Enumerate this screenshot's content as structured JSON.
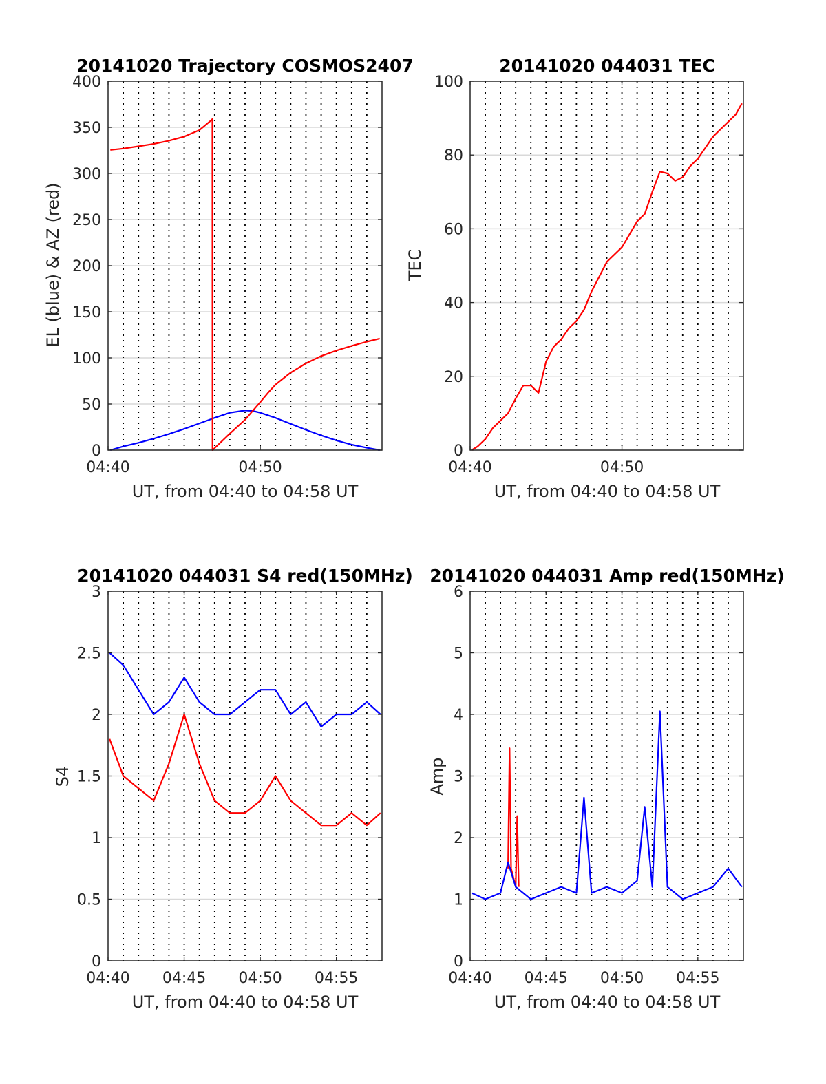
{
  "colors": {
    "el": "#0000ff",
    "az": "#ff0000",
    "tec": "#ff0000",
    "s4_red": "#ff0000",
    "s4_blue": "#0000ff",
    "amp_red": "#ff0000",
    "amp_blue": "#0000ff"
  },
  "chart_data": [
    {
      "id": "traj",
      "type": "line",
      "title": "20141020 Trajectory COSMOS2407",
      "xlabel": "UT, from 04:40 to 04:58 UT",
      "ylabel": "EL (blue) & AZ (red)",
      "xlim": [
        0,
        18
      ],
      "ylim": [
        0,
        400
      ],
      "xticks": [
        {
          "v": 0,
          "label": "04:40"
        },
        {
          "v": 10,
          "label": "04:50"
        }
      ],
      "yticks": [
        {
          "v": 0,
          "label": "0"
        },
        {
          "v": 50,
          "label": "50"
        },
        {
          "v": 100,
          "label": "100"
        },
        {
          "v": 150,
          "label": "150"
        },
        {
          "v": 200,
          "label": "200"
        },
        {
          "v": 250,
          "label": "250"
        },
        {
          "v": 300,
          "label": "300"
        },
        {
          "v": 350,
          "label": "350"
        },
        {
          "v": 400,
          "label": "400"
        }
      ],
      "grid": "on",
      "series": [
        {
          "color": "#0000ff",
          "x": [
            0.15,
            1,
            2,
            3,
            4,
            5,
            6,
            7,
            8,
            9,
            9.5,
            10,
            11,
            12,
            13,
            14,
            15,
            16,
            17,
            17.85
          ],
          "y": [
            0,
            4,
            8,
            12.5,
            17.5,
            23,
            29,
            35,
            40.5,
            43,
            42.5,
            40.5,
            35,
            28.5,
            22,
            16,
            10.5,
            6,
            2.5,
            0
          ]
        },
        {
          "color": "#ff0000",
          "x": [
            0.15,
            1,
            2,
            3,
            4,
            5,
            6,
            6.8,
            6.85,
            6.86,
            7.5,
            8,
            9,
            10,
            10.5,
            11,
            12,
            13,
            14,
            15,
            16,
            17,
            17.85
          ],
          "y": [
            325.5,
            327,
            329.5,
            332,
            335.5,
            340,
            347,
            358,
            359,
            0,
            10,
            18,
            33,
            52,
            62,
            71,
            84,
            94,
            102,
            108,
            113,
            117.5,
            121
          ]
        }
      ]
    },
    {
      "id": "tec",
      "type": "line",
      "title": "20141020 044031 TEC",
      "xlabel": "UT, from 04:40 to 04:58 UT",
      "ylabel": "TEC",
      "xlim": [
        0,
        18
      ],
      "ylim": [
        0,
        100
      ],
      "xticks": [
        {
          "v": 0,
          "label": "04:40"
        },
        {
          "v": 10,
          "label": "04:50"
        }
      ],
      "yticks": [
        {
          "v": 0,
          "label": "0"
        },
        {
          "v": 20,
          "label": "20"
        },
        {
          "v": 40,
          "label": "40"
        },
        {
          "v": 60,
          "label": "60"
        },
        {
          "v": 80,
          "label": "80"
        },
        {
          "v": 100,
          "label": "100"
        }
      ],
      "grid": "on",
      "series": [
        {
          "color": "#ff0000",
          "x": [
            0.1,
            0.5,
            1,
            1.5,
            2,
            2.5,
            3,
            3.5,
            4,
            4.5,
            5,
            5.5,
            6,
            6.5,
            7,
            7.5,
            8,
            8.5,
            9,
            9.5,
            10,
            10.5,
            11,
            11.5,
            12,
            12.5,
            13,
            13.5,
            14,
            14.5,
            15,
            15.5,
            16,
            16.5,
            17,
            17.5,
            17.9
          ],
          "y": [
            0,
            1,
            3,
            6,
            8,
            10,
            14,
            17.5,
            17.5,
            15.5,
            24,
            28,
            30,
            33,
            35,
            38,
            43,
            47,
            51,
            53,
            55,
            58.5,
            62,
            64,
            70,
            75.5,
            75,
            73,
            74,
            77,
            79,
            82,
            85,
            87,
            89,
            91,
            94
          ]
        }
      ]
    },
    {
      "id": "s4",
      "type": "line",
      "title": "20141020 044031 S4 red(150MHz)",
      "xlabel": "UT, from 04:40 to 04:58 UT",
      "ylabel": "S4",
      "xlim": [
        0,
        18
      ],
      "ylim": [
        0,
        3
      ],
      "xticks": [
        {
          "v": 0,
          "label": "04:40"
        },
        {
          "v": 5,
          "label": "04:45"
        },
        {
          "v": 10,
          "label": "04:50"
        },
        {
          "v": 15,
          "label": "04:55"
        }
      ],
      "yticks": [
        {
          "v": 0,
          "label": "0"
        },
        {
          "v": 0.5,
          "label": "0.5"
        },
        {
          "v": 1,
          "label": "1"
        },
        {
          "v": 1.5,
          "label": "1.5"
        },
        {
          "v": 2,
          "label": "2"
        },
        {
          "v": 2.5,
          "label": "2.5"
        },
        {
          "v": 3,
          "label": "3"
        }
      ],
      "grid": "on",
      "series": [
        {
          "color": "#ff0000",
          "x": [
            0.1,
            1,
            2,
            3,
            4,
            5,
            6,
            7,
            8,
            9,
            10,
            11,
            12,
            13,
            14,
            15,
            16,
            17,
            17.9
          ],
          "y": [
            1.8,
            1.5,
            1.4,
            1.3,
            1.6,
            2.0,
            1.6,
            1.3,
            1.2,
            1.2,
            1.3,
            1.5,
            1.3,
            1.2,
            1.1,
            1.1,
            1.2,
            1.1,
            1.2
          ]
        },
        {
          "color": "#0000ff",
          "x": [
            0.1,
            1,
            2,
            3,
            4,
            5,
            6,
            7,
            8,
            9,
            10,
            11,
            12,
            13,
            14,
            15,
            16,
            17,
            17.9
          ],
          "y": [
            2.5,
            2.4,
            2.2,
            2.0,
            2.1,
            2.3,
            2.1,
            2.0,
            2.0,
            2.1,
            2.2,
            2.2,
            2.0,
            2.1,
            1.9,
            2.0,
            2.0,
            2.1,
            2.0
          ]
        }
      ]
    },
    {
      "id": "amp",
      "type": "line",
      "title": "20141020 044031 Amp red(150MHz)",
      "xlabel": "UT, from 04:40 to 04:58 UT",
      "ylabel": "Amp",
      "xlim": [
        0,
        18
      ],
      "ylim": [
        0,
        6
      ],
      "xticks": [
        {
          "v": 0,
          "label": "04:40"
        },
        {
          "v": 5,
          "label": "04:45"
        },
        {
          "v": 10,
          "label": "04:50"
        },
        {
          "v": 15,
          "label": "04:55"
        }
      ],
      "yticks": [
        {
          "v": 0,
          "label": "0"
        },
        {
          "v": 1,
          "label": "1"
        },
        {
          "v": 2,
          "label": "2"
        },
        {
          "v": 3,
          "label": "3"
        },
        {
          "v": 4,
          "label": "4"
        },
        {
          "v": 5,
          "label": "5"
        },
        {
          "v": 6,
          "label": "6"
        }
      ],
      "grid": "on",
      "series": [
        {
          "color": "#ff0000",
          "x": [
            2.5,
            2.6,
            2.7,
            3.0,
            3.1,
            3.2
          ],
          "y": [
            1.5,
            3.45,
            1.5,
            1.2,
            2.35,
            1.2
          ]
        },
        {
          "color": "#0000ff",
          "x": [
            0.1,
            1,
            2,
            2.5,
            3,
            4,
            5,
            6,
            7,
            7.5,
            8,
            9,
            10,
            11,
            11.5,
            12,
            12.5,
            13,
            13.5,
            14,
            15,
            16,
            17,
            17.9
          ],
          "y": [
            1.1,
            1.0,
            1.1,
            1.6,
            1.2,
            1.0,
            1.1,
            1.2,
            1.1,
            2.65,
            1.1,
            1.2,
            1.1,
            1.3,
            2.5,
            1.2,
            4.05,
            1.2,
            1.1,
            1.0,
            1.1,
            1.2,
            1.5,
            1.2
          ]
        }
      ]
    }
  ]
}
